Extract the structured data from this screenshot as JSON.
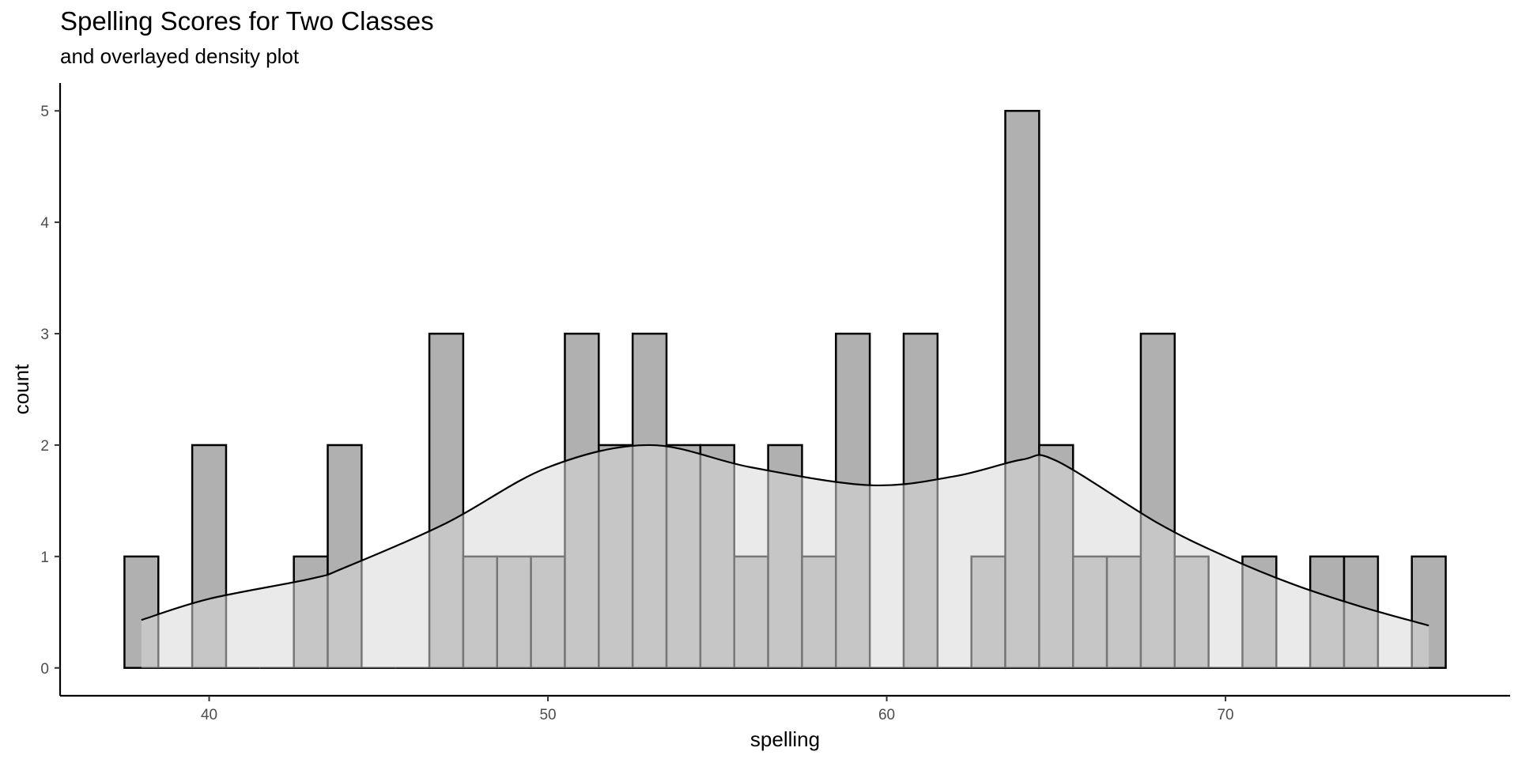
{
  "chart_data": {
    "type": "histogram",
    "title": "Spelling Scores for Two Classes",
    "subtitle": "and overlayed density plot",
    "xlabel": "spelling",
    "ylabel": "count",
    "xlim": [
      35.6,
      78.4
    ],
    "ylim": [
      -0.25,
      5.25
    ],
    "x_ticks": [
      40,
      50,
      60,
      70
    ],
    "y_ticks": [
      0,
      1,
      2,
      3,
      4,
      5
    ],
    "grid": false,
    "bin_width": 1,
    "bins": [
      {
        "x": 38,
        "count": 1
      },
      {
        "x": 39,
        "count": 0
      },
      {
        "x": 40,
        "count": 2
      },
      {
        "x": 41,
        "count": 0
      },
      {
        "x": 42,
        "count": 0
      },
      {
        "x": 43,
        "count": 1
      },
      {
        "x": 44,
        "count": 2
      },
      {
        "x": 45,
        "count": 0
      },
      {
        "x": 46,
        "count": 0
      },
      {
        "x": 47,
        "count": 3
      },
      {
        "x": 48,
        "count": 1
      },
      {
        "x": 49,
        "count": 1
      },
      {
        "x": 50,
        "count": 1
      },
      {
        "x": 51,
        "count": 3
      },
      {
        "x": 52,
        "count": 2
      },
      {
        "x": 53,
        "count": 3
      },
      {
        "x": 54,
        "count": 2
      },
      {
        "x": 55,
        "count": 2
      },
      {
        "x": 56,
        "count": 1
      },
      {
        "x": 57,
        "count": 2
      },
      {
        "x": 58,
        "count": 1
      },
      {
        "x": 59,
        "count": 3
      },
      {
        "x": 60,
        "count": 0
      },
      {
        "x": 61,
        "count": 3
      },
      {
        "x": 62,
        "count": 0
      },
      {
        "x": 63,
        "count": 1
      },
      {
        "x": 64,
        "count": 5
      },
      {
        "x": 65,
        "count": 2
      },
      {
        "x": 66,
        "count": 1
      },
      {
        "x": 67,
        "count": 1
      },
      {
        "x": 68,
        "count": 3
      },
      {
        "x": 69,
        "count": 1
      },
      {
        "x": 70,
        "count": 0
      },
      {
        "x": 71,
        "count": 1
      },
      {
        "x": 72,
        "count": 0
      },
      {
        "x": 73,
        "count": 1
      },
      {
        "x": 74,
        "count": 1
      },
      {
        "x": 75,
        "count": 0
      },
      {
        "x": 76,
        "count": 1
      }
    ],
    "density": {
      "x": [
        38,
        40,
        43,
        44,
        47,
        50,
        53,
        56,
        59.5,
        62,
        64,
        65,
        68,
        70,
        72,
        74,
        76
      ],
      "y": [
        0.43,
        0.62,
        0.8,
        0.9,
        1.3,
        1.8,
        2.0,
        1.8,
        1.64,
        1.72,
        1.87,
        1.86,
        1.3,
        1.0,
        0.75,
        0.55,
        0.38
      ]
    },
    "colors": {
      "bar_fill": "#b0b0b0",
      "bar_stroke": "#000000",
      "density_fill": "#d9d9d9",
      "density_line": "#000000"
    }
  }
}
